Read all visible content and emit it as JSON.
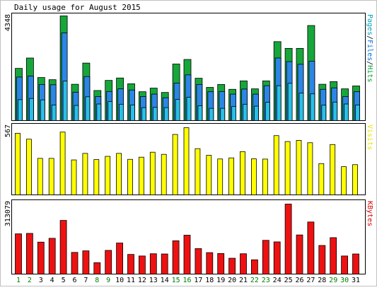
{
  "chart_data": {
    "type": "bar",
    "title": "Daily usage for August 2015",
    "background": "#ffffff",
    "frame_color": "#000000",
    "categories": [
      "1",
      "2",
      "3",
      "4",
      "5",
      "6",
      "7",
      "8",
      "9",
      "10",
      "11",
      "12",
      "13",
      "14",
      "15",
      "16",
      "17",
      "18",
      "19",
      "20",
      "21",
      "22",
      "23",
      "24",
      "25",
      "26",
      "27",
      "28",
      "29",
      "30",
      "31"
    ],
    "weekend_days": [
      "1",
      "2",
      "8",
      "9",
      "15",
      "16",
      "22",
      "23",
      "29",
      "30"
    ],
    "weekday_label_color": "#000000",
    "weekend_label_color": "#008000",
    "panels": [
      {
        "id": "hits-files-pages",
        "ymax_label": "4348",
        "ymax": 4348,
        "right_label": [
          "Pages",
          "/",
          "Files",
          "/",
          "Hits"
        ],
        "right_label_colors": [
          "#00a0c0",
          "#000000",
          "#0070e0",
          "#000000",
          "#00a030"
        ],
        "series": [
          {
            "name": "Hits",
            "color": "#16a63a",
            "values": [
              2170,
              2600,
              1790,
              1700,
              4348,
              1510,
              2390,
              1250,
              1670,
              1770,
              1530,
              1200,
              1350,
              1170,
              2350,
              2540,
              1760,
              1380,
              1500,
              1300,
              1650,
              1320,
              1650,
              3280,
              3000,
              3000,
              3950,
              1510,
              1620,
              1320,
              1440
            ]
          },
          {
            "name": "Files",
            "color": "#2b86e6",
            "values": [
              1810,
              1850,
              1500,
              1490,
              3640,
              1180,
              1830,
              1000,
              1210,
              1320,
              1270,
              1000,
              1100,
              950,
              1560,
              1900,
              1500,
              1200,
              1210,
              1100,
              1310,
              1100,
              1450,
              2600,
              2450,
              2340,
              2470,
              1300,
              1360,
              1000,
              1200
            ]
          },
          {
            "name": "Pages",
            "color": "#28c0e8",
            "values": [
              870,
              920,
              860,
              650,
              1640,
              630,
              990,
              690,
              790,
              680,
              650,
              540,
              550,
              540,
              880,
              970,
              620,
              510,
              510,
              590,
              680,
              600,
              760,
              1450,
              1550,
              1140,
              1110,
              640,
              770,
              690,
              650
            ]
          }
        ]
      },
      {
        "id": "visits",
        "ymax_label": "567",
        "ymax": 567,
        "right_label": [
          "Visits"
        ],
        "right_label_colors": [
          "#e6e600"
        ],
        "series": [
          {
            "name": "Visits",
            "color": "#ffff00",
            "values": [
              520,
              470,
              308,
              308,
              530,
              295,
              350,
              298,
              325,
              350,
              300,
              318,
              360,
              342,
              510,
              567,
              390,
              334,
              303,
              312,
              365,
              304,
              302,
              500,
              450,
              460,
              440,
              264,
              425,
              238,
              255
            ]
          }
        ]
      },
      {
        "id": "kbytes",
        "ymax_label": "313079",
        "ymax": 313079,
        "right_label": [
          "KBytes"
        ],
        "right_label_colors": [
          "#e00000"
        ],
        "series": [
          {
            "name": "KBytes",
            "color": "#ee1111",
            "values": [
              180000,
              182000,
              143000,
              160000,
              240000,
              97000,
              104000,
              51000,
              106000,
              139000,
              88000,
              81000,
              91000,
              90000,
              149000,
              174000,
              114000,
              96000,
              92000,
              71000,
              91000,
              64000,
              151000,
              144000,
              313079,
              175000,
              233000,
              128000,
              163000,
              81000,
              90000
            ]
          }
        ]
      }
    ]
  }
}
